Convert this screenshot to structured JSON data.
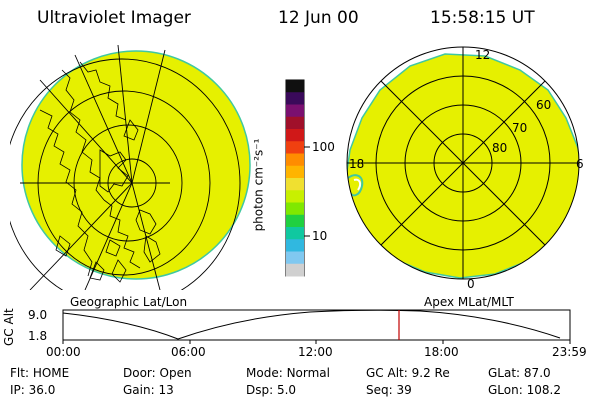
{
  "header": {
    "instrument": "Ultraviolet Imager",
    "date": "12 Jun 00",
    "time": "15:58:15 UT"
  },
  "left_map": {
    "label": "Geographic Lat/Lon"
  },
  "right_map": {
    "label": "Apex MLat/MLT",
    "mlt_labels": {
      "top": "12",
      "right": "6",
      "bottom": "0",
      "left": "18"
    },
    "lat_labels": [
      "60",
      "70",
      "80"
    ]
  },
  "colorbar": {
    "unit_label": "photon cm⁻²s⁻¹",
    "ticks": [
      "100",
      "10"
    ],
    "colors": [
      "#101010",
      "#3a0a5a",
      "#7a1070",
      "#a0102a",
      "#d01818",
      "#f04010",
      "#ff8c00",
      "#ffb400",
      "#f0e030",
      "#c8f000",
      "#80e800",
      "#20d040",
      "#10c8a0",
      "#30b8e0",
      "#80c8f0",
      "#d0d0d0"
    ]
  },
  "timeline": {
    "ylabel": "GC Alt",
    "ytick_high": "9.0",
    "ytick_low": "1.8",
    "xticks": [
      "00:00",
      "06:00",
      "12:00",
      "18:00",
      "23:59"
    ],
    "cursor_color": "#c00000"
  },
  "info": {
    "flt_label": "Flt:",
    "flt_value": "HOME",
    "ip_label": "IP:",
    "ip_value": "36.0",
    "door_label": "Door:",
    "door_value": "Open",
    "gain_label": "Gain:",
    "gain_value": "13",
    "mode_label": "Mode:",
    "mode_value": "Normal",
    "dsp_label": "Dsp:",
    "dsp_value": "5.0",
    "gcalt_label": "GC Alt:",
    "gcalt_value": "9.2 Re",
    "seq_label": "Seq:",
    "seq_value": "39",
    "glat_label": "GLat:",
    "glat_value": "87.0",
    "glon_label": "GLon:",
    "glon_value": "108.2"
  },
  "image_color": "#e6f000"
}
